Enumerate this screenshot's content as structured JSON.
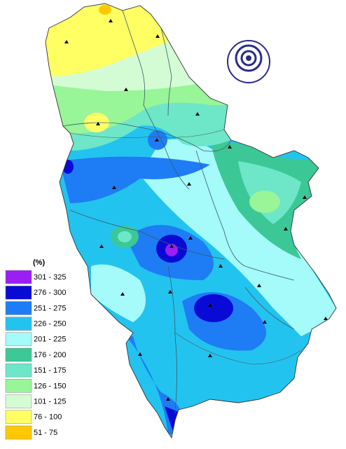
{
  "legend": {
    "title": "(%)",
    "items": [
      {
        "label": "301 - 325",
        "color": "#9a1ef5"
      },
      {
        "label": "276 - 300",
        "color": "#0a0ad7"
      },
      {
        "label": "251 - 275",
        "color": "#1e7cf5"
      },
      {
        "label": "226 - 250",
        "color": "#23c3f0"
      },
      {
        "label": "201 - 225",
        "color": "#a5fafa"
      },
      {
        "label": "176 - 200",
        "color": "#3cc896"
      },
      {
        "label": "151 - 175",
        "color": "#6ee6c8"
      },
      {
        "label": "126 - 150",
        "color": "#98f598"
      },
      {
        "label": "101 - 125",
        "color": "#d4fcd4"
      },
      {
        "label": "76 - 100",
        "color": "#ffff64"
      },
      {
        "label": "51 - 75",
        "color": "#ffc800"
      }
    ]
  }
}
